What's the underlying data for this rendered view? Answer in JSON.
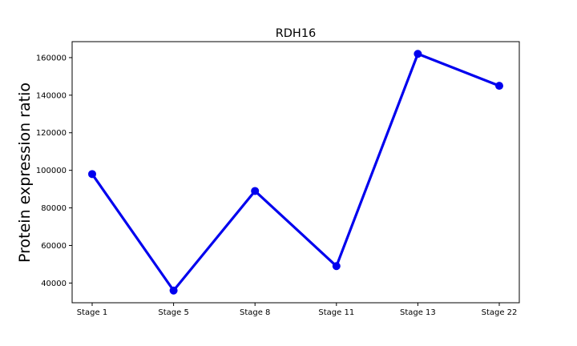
{
  "chart_data": {
    "type": "line",
    "title": "RDH16",
    "xlabel": "",
    "ylabel": "Protein expression ratio",
    "categories": [
      "Stage 1",
      "Stage 5",
      "Stage 8",
      "Stage 11",
      "Stage 13",
      "Stage 22"
    ],
    "series": [
      {
        "values": [
          98000,
          36000,
          89000,
          49000,
          162000,
          145000
        ],
        "color": "#0000ee"
      }
    ],
    "ylim": [
      29500,
      168500
    ],
    "yticks": [
      40000,
      60000,
      80000,
      100000,
      120000,
      140000,
      160000
    ],
    "grid": false,
    "legend": "none"
  }
}
